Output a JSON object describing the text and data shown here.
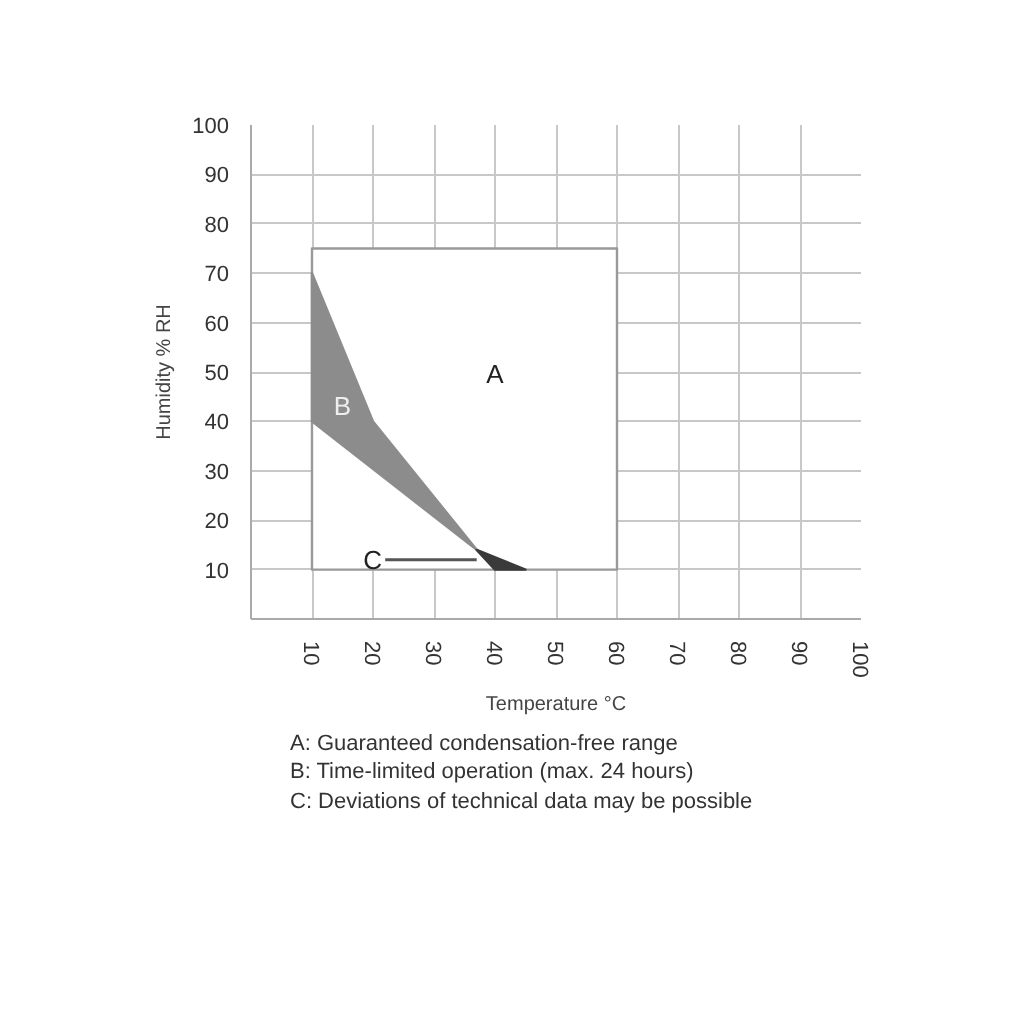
{
  "chart_data": {
    "type": "area",
    "xlabel": "Temperature °C",
    "ylabel": "Humidity % RH",
    "xlim": [
      0,
      100
    ],
    "ylim": [
      0,
      100
    ],
    "xticks": [
      10,
      20,
      30,
      40,
      50,
      60,
      70,
      80,
      90,
      100
    ],
    "yticks": [
      10,
      20,
      30,
      40,
      50,
      60,
      70,
      80,
      90,
      100
    ],
    "grid": true,
    "series": [
      {
        "name": "A",
        "color": "#ffffff",
        "x": [
          10,
          10,
          60,
          60
        ],
        "values": [
          10,
          75,
          75,
          10
        ]
      },
      {
        "name": "B",
        "color": "#8c8c8c",
        "x": [
          10,
          20,
          37,
          10
        ],
        "values": [
          70,
          40,
          14,
          40
        ]
      },
      {
        "name": "C",
        "color": "#3a3a3a",
        "x": [
          37,
          45,
          40
        ],
        "values": [
          14,
          10,
          10
        ]
      }
    ],
    "annotations": [
      "A: Guaranteed condensation-free range",
      "B: Time-limited operation (max. 24 hours)",
      "C: Deviations of technical data may be possible"
    ]
  }
}
